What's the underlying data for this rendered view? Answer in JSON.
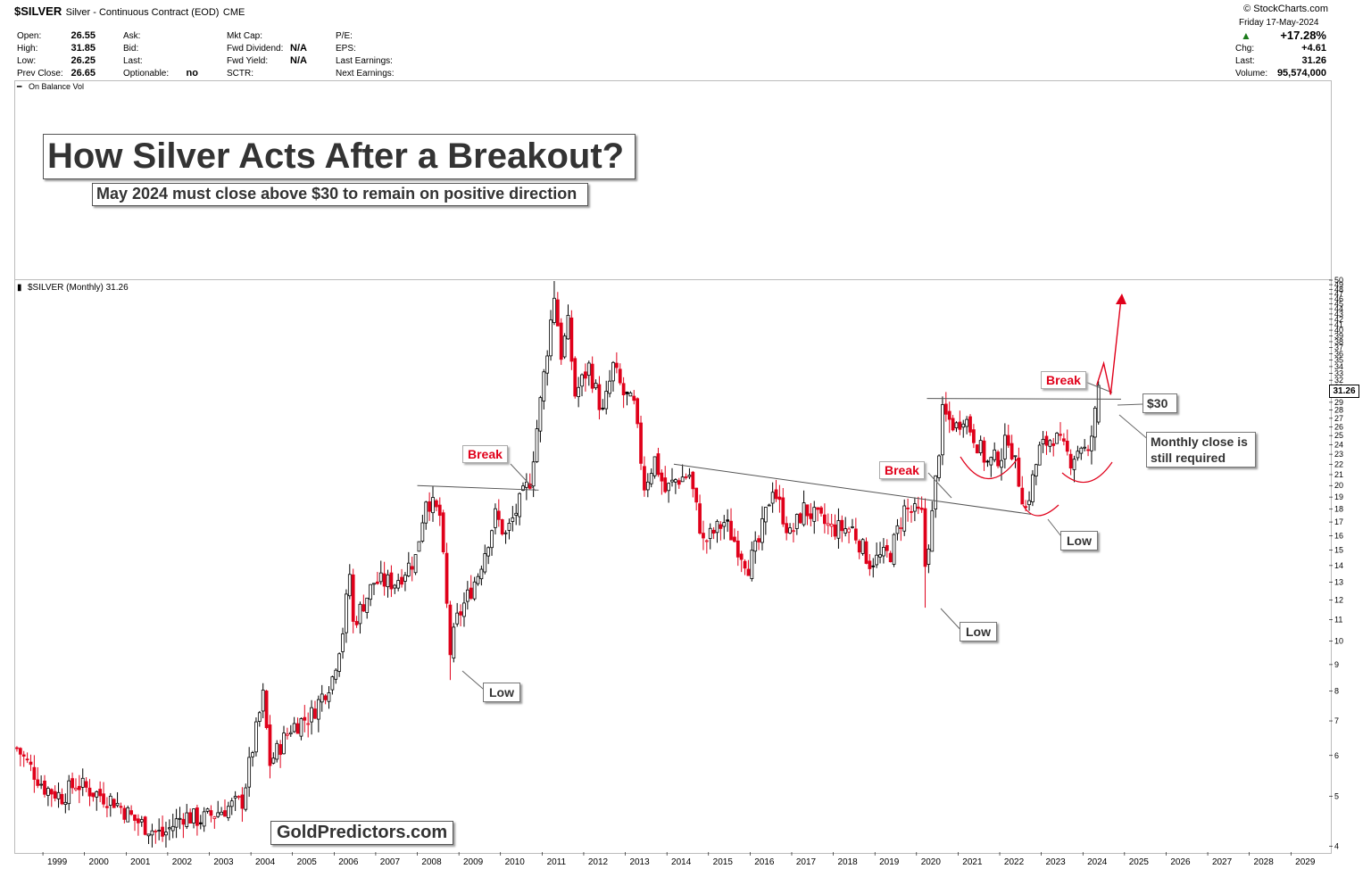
{
  "header": {
    "symbol": "$SILVER",
    "description": "Silver - Continuous Contract (EOD)",
    "exchange": "CME",
    "source": "© StockCharts.com",
    "date_line": "Friday  17-May-2024",
    "change_pct": "+17.28%",
    "quote": {
      "open_label": "Open:",
      "open": "26.55",
      "high_label": "High:",
      "high": "31.85",
      "low_label": "Low:",
      "low": "26.25",
      "prev_close_label": "Prev Close:",
      "prev_close": "26.65",
      "ask_label": "Ask:",
      "bid_label": "Bid:",
      "last_label_mid": "Last:",
      "optionable_label": "Optionable:",
      "optionable": "no",
      "mkt_cap_label": "Mkt Cap:",
      "fwd_div_label": "Fwd Dividend:",
      "fwd_div": "N/A",
      "fwd_yield_label": "Fwd Yield:",
      "fwd_yield": "N/A",
      "sctr_label": "SCTR:",
      "pe_label": "P/E:",
      "eps_label": "EPS:",
      "last_earn_label": "Last Earnings:",
      "next_earn_label": "Next Earnings:",
      "chg_label": "Chg:",
      "chg": "+4.61",
      "last_label": "Last:",
      "last": "31.26",
      "volume_label": "Volume:",
      "volume": "95,574,000"
    },
    "obv_label": "On Balance Vol"
  },
  "annotations": {
    "title": "How Silver Acts After a Breakout?",
    "subtitle": "May 2024 must close above $30 to remain on positive direction",
    "watermark": "GoldPredictors.com",
    "break_2010": "Break",
    "break_2020": "Break",
    "break_2024": "Break",
    "low_2008": "Low",
    "low_2020": "Low",
    "low_2022": "Low",
    "level_30": "$30",
    "monthly_close_1": "Monthly close is",
    "monthly_close_2": "still required"
  },
  "colors": {
    "up": "#000000",
    "down": "#e0001a",
    "accent": "#e0001a",
    "chg_up": "#1a7a1a"
  },
  "chart_data": {
    "type": "candlestick",
    "panel_label": "$SILVER (Monthly) 31.26",
    "last_price_tag": "31.26",
    "y_scale": "log",
    "ylim": [
      3.9,
      50
    ],
    "y_ticks": [
      4,
      5,
      6,
      7,
      8,
      9,
      10,
      11,
      12,
      13,
      14,
      15,
      16,
      17,
      18,
      19,
      20,
      21,
      22,
      23,
      24,
      25,
      26,
      27,
      28,
      29,
      30,
      31,
      32,
      33,
      34,
      35,
      36,
      37,
      38,
      39,
      40,
      41,
      42,
      43,
      44,
      45,
      46,
      47,
      48,
      49,
      50
    ],
    "x_ticks": [
      "1999",
      "2000",
      "2001",
      "2002",
      "2003",
      "2004",
      "2005",
      "2006",
      "2007",
      "2008",
      "2009",
      "2010",
      "2011",
      "2012",
      "2013",
      "2014",
      "2015",
      "2016",
      "2017",
      "2018",
      "2019",
      "2020",
      "2021",
      "2022",
      "2023",
      "2024",
      "2025",
      "2026",
      "2027",
      "2028",
      "2029"
    ],
    "xlim": [
      "1998-05",
      "2029-12"
    ],
    "series_path": [
      [
        "1998-05",
        6.2
      ],
      [
        "1999-01",
        5.2
      ],
      [
        "1999-06",
        5.0
      ],
      [
        "1999-10",
        5.3
      ],
      [
        "2000-03",
        5.1
      ],
      [
        "2000-09",
        4.9
      ],
      [
        "2001-03",
        4.5
      ],
      [
        "2001-11",
        4.2
      ],
      [
        "2002-05",
        4.6
      ],
      [
        "2002-10",
        4.5
      ],
      [
        "2003-04",
        4.7
      ],
      [
        "2003-10",
        4.9
      ],
      [
        "2004-01",
        6.2
      ],
      [
        "2004-04",
        7.8
      ],
      [
        "2004-06",
        5.8
      ],
      [
        "2004-12",
        6.8
      ],
      [
        "2005-06",
        7.2
      ],
      [
        "2005-12",
        8.5
      ],
      [
        "2006-03",
        10.5
      ],
      [
        "2006-05",
        13.5
      ],
      [
        "2006-06",
        10.8
      ],
      [
        "2006-12",
        13.0
      ],
      [
        "2007-06",
        13.0
      ],
      [
        "2007-12",
        14.5
      ],
      [
        "2008-03",
        19.0
      ],
      [
        "2008-07",
        17.5
      ],
      [
        "2008-10",
        9.5
      ],
      [
        "2008-12",
        11.0
      ],
      [
        "2009-06",
        13.5
      ],
      [
        "2009-11",
        17.5
      ],
      [
        "2010-02",
        16.0
      ],
      [
        "2010-06",
        18.5
      ],
      [
        "2010-09",
        20.5
      ],
      [
        "2010-12",
        29.0
      ],
      [
        "2011-04",
        47.0
      ],
      [
        "2011-06",
        36.0
      ],
      [
        "2011-08",
        41.0
      ],
      [
        "2011-10",
        30.0
      ],
      [
        "2012-02",
        34.0
      ],
      [
        "2012-06",
        27.5
      ],
      [
        "2012-09",
        34.0
      ],
      [
        "2012-12",
        30.0
      ],
      [
        "2013-03",
        28.5
      ],
      [
        "2013-06",
        20.0
      ],
      [
        "2013-09",
        22.5
      ],
      [
        "2013-12",
        19.5
      ],
      [
        "2014-03",
        20.5
      ],
      [
        "2014-07",
        21.0
      ],
      [
        "2014-11",
        15.5
      ],
      [
        "2015-05",
        17.0
      ],
      [
        "2015-12",
        14.0
      ],
      [
        "2016-03",
        15.5
      ],
      [
        "2016-07",
        20.0
      ],
      [
        "2016-12",
        16.0
      ],
      [
        "2017-04",
        18.0
      ],
      [
        "2017-12",
        16.5
      ],
      [
        "2018-06",
        16.5
      ],
      [
        "2018-11",
        14.2
      ],
      [
        "2019-05",
        14.8
      ],
      [
        "2019-09",
        18.0
      ],
      [
        "2020-02",
        17.5
      ],
      [
        "2020-03",
        14.0
      ],
      [
        "2020-05",
        17.5
      ],
      [
        "2020-08",
        27.5
      ],
      [
        "2020-12",
        26.0
      ],
      [
        "2021-02",
        27.5
      ],
      [
        "2021-09",
        22.0
      ],
      [
        "2022-01",
        23.0
      ],
      [
        "2022-03",
        25.0
      ],
      [
        "2022-08",
        18.0
      ],
      [
        "2022-12",
        23.5
      ],
      [
        "2023-04",
        25.0
      ],
      [
        "2023-09",
        22.5
      ],
      [
        "2023-12",
        24.0
      ],
      [
        "2024-02",
        22.8
      ],
      [
        "2024-04",
        27.5
      ],
      [
        "2024-05",
        31.26
      ]
    ],
    "key_candles": [
      {
        "date": "2008-10",
        "low": 8.4
      },
      {
        "date": "2011-04",
        "high": 49.8
      },
      {
        "date": "2020-03",
        "low": 11.6
      },
      {
        "date": "2024-05",
        "open": 26.55,
        "high": 31.85,
        "low": 26.25,
        "close": 31.26
      }
    ],
    "trendlines": [
      {
        "name": "2008 resistance",
        "from": [
          "2008-01",
          20.0
        ],
        "to": [
          "2010-12",
          19.6
        ]
      },
      {
        "name": "2014-2022 descending line",
        "from": [
          "2014-03",
          22.0
        ],
        "to": [
          "2022-10",
          17.6
        ]
      },
      {
        "name": "$30 level",
        "from": [
          "2020-04",
          29.5
        ],
        "to": [
          "2024-12",
          29.4
        ]
      }
    ],
    "projection": [
      [
        "2024-05",
        31.3
      ],
      [
        "2024-07",
        34.5
      ],
      [
        "2024-09",
        30.0
      ],
      [
        "2024-12",
        46.0
      ]
    ]
  }
}
